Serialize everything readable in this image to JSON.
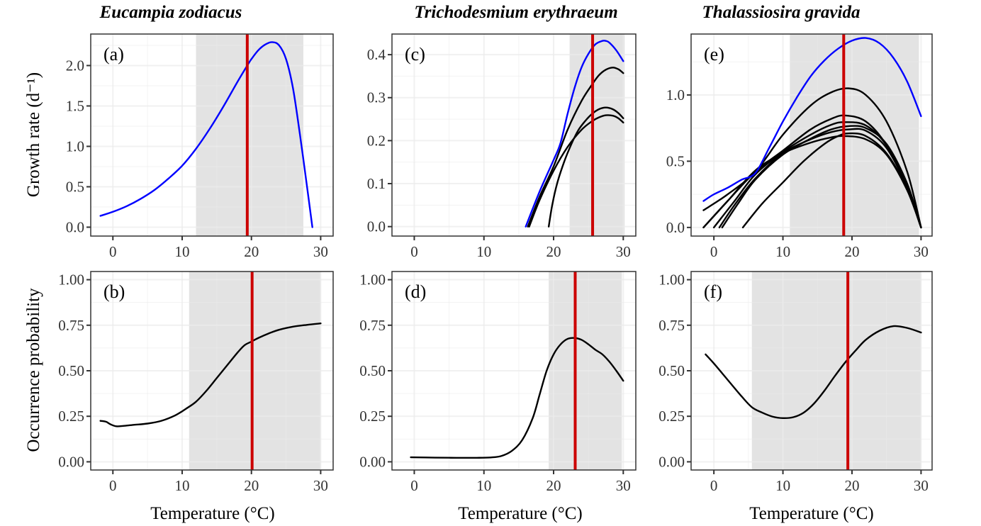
{
  "figure": {
    "columns": [
      {
        "species": "Eucampia zodiacus"
      },
      {
        "species": "Trichodesmium erythraeum"
      },
      {
        "species": "Thalassiosira gravida"
      }
    ],
    "row_ylabels": [
      "Growth rate (d⁻¹)",
      "Occurrence probability"
    ],
    "xlabel": "Temperature (°C)",
    "colors": {
      "optimum_curve": "#0000ff",
      "strain_curve": "#000000",
      "occurrence_curve": "#000000",
      "mean_temperature_line": "#cc0000",
      "shaded_range": "#e3e3e3",
      "grid": "#ebebeb",
      "panel_border": "#333333"
    }
  },
  "chart_data": [
    {
      "panel": "(a)",
      "type": "line",
      "species": "Eucampia zodiacus",
      "xlabel": "",
      "ylabel": "Growth rate (d⁻¹)",
      "xlim": [
        -3.2,
        31.8
      ],
      "ylim": [
        -0.11,
        2.39
      ],
      "xticks": [
        0,
        10,
        20,
        30
      ],
      "xtick_labels": [
        "0",
        "10",
        "20",
        "30"
      ],
      "yticks": [
        0,
        0.5,
        1.0,
        1.5,
        2.0
      ],
      "ytick_labels": [
        "0.0",
        "0.5",
        "1.0",
        "1.5",
        "2.0"
      ],
      "grid": true,
      "shaded_range": [
        12,
        27.5
      ],
      "vline": 19.4,
      "series": [
        {
          "name": "optimum",
          "color": "#0000ff",
          "x": [
            -1.8,
            0,
            2,
            4,
            6,
            8,
            10,
            12,
            14,
            16,
            18,
            19.4,
            20,
            21,
            22,
            23,
            24,
            25,
            26,
            27,
            28,
            28.8
          ],
          "y": [
            0.14,
            0.19,
            0.26,
            0.35,
            0.46,
            0.6,
            0.76,
            0.97,
            1.22,
            1.5,
            1.8,
            2.0,
            2.08,
            2.19,
            2.26,
            2.29,
            2.25,
            2.08,
            1.72,
            1.15,
            0.52,
            0.0
          ]
        }
      ]
    },
    {
      "panel": "(b)",
      "type": "line",
      "species": "Eucampia zodiacus",
      "xlabel": "Temperature (°C)",
      "ylabel": "Occurrence probability",
      "xlim": [
        -3.2,
        31.8
      ],
      "ylim": [
        -0.045,
        1.045
      ],
      "xticks": [
        0,
        10,
        20,
        30
      ],
      "xtick_labels": [
        "0",
        "10",
        "20",
        "30"
      ],
      "yticks": [
        0,
        0.25,
        0.5,
        0.75,
        1.0
      ],
      "ytick_labels": [
        "0.00",
        "0.25",
        "0.50",
        "0.75",
        "1.00"
      ],
      "grid": true,
      "shaded_range": [
        11,
        30
      ],
      "vline": 20.1,
      "series": [
        {
          "name": "occurrence",
          "color": "#000000",
          "x": [
            -1.8,
            -1,
            -0.3,
            0.5,
            1.5,
            3,
            5,
            7,
            9,
            10.5,
            12,
            13.5,
            15,
            16.5,
            18,
            19,
            20,
            21,
            22.5,
            24,
            26,
            28,
            30
          ],
          "y": [
            0.225,
            0.22,
            0.205,
            0.195,
            0.197,
            0.203,
            0.21,
            0.225,
            0.255,
            0.29,
            0.33,
            0.39,
            0.46,
            0.53,
            0.6,
            0.64,
            0.66,
            0.68,
            0.705,
            0.725,
            0.742,
            0.752,
            0.76
          ]
        }
      ]
    },
    {
      "panel": "(c)",
      "type": "line",
      "species": "Trichodesmium erythraeum",
      "xlabel": "",
      "ylabel": "",
      "xlim": [
        -3.2,
        31.8
      ],
      "ylim": [
        -0.022,
        0.448
      ],
      "xticks": [
        0,
        10,
        20,
        30
      ],
      "xtick_labels": [
        "0",
        "10",
        "20",
        "30"
      ],
      "yticks": [
        0,
        0.1,
        0.2,
        0.3,
        0.4
      ],
      "ytick_labels": [
        "0.0",
        "0.1",
        "0.2",
        "0.3",
        "0.4"
      ],
      "grid": true,
      "shaded_range": [
        22.3,
        30.2
      ],
      "vline": 25.6,
      "series": [
        {
          "name": "optimum",
          "color": "#0000ff",
          "x": [
            16,
            18,
            20,
            21,
            22,
            23,
            24,
            25,
            26,
            27,
            27.5,
            28,
            29,
            30
          ],
          "y": [
            0.0,
            0.082,
            0.155,
            0.195,
            0.262,
            0.322,
            0.37,
            0.402,
            0.424,
            0.432,
            0.432,
            0.428,
            0.41,
            0.385
          ]
        },
        {
          "name": "strain-1",
          "color": "#000000",
          "x": [
            16.3,
            18,
            20,
            22,
            24,
            25.5,
            26.5,
            27.5,
            28.5,
            29.3,
            30
          ],
          "y": [
            0.0,
            0.07,
            0.14,
            0.225,
            0.292,
            0.33,
            0.352,
            0.365,
            0.37,
            0.366,
            0.357
          ]
        },
        {
          "name": "strain-2",
          "color": "#000000",
          "x": [
            19.3,
            19.8,
            20.5,
            21.5,
            22.5,
            23.5,
            24.5,
            25.5,
            26.5,
            27.5,
            28.5,
            29.3,
            30
          ],
          "y": [
            0.0,
            0.05,
            0.1,
            0.15,
            0.19,
            0.223,
            0.245,
            0.262,
            0.273,
            0.277,
            0.273,
            0.264,
            0.252
          ]
        },
        {
          "name": "strain-3",
          "color": "#000000",
          "x": [
            16.5,
            18,
            20,
            22,
            24,
            25.5,
            26.5,
            27.5,
            28.5,
            29.3,
            30
          ],
          "y": [
            0.0,
            0.062,
            0.13,
            0.185,
            0.225,
            0.245,
            0.254,
            0.259,
            0.258,
            0.252,
            0.242
          ]
        }
      ]
    },
    {
      "panel": "(d)",
      "type": "line",
      "species": "Trichodesmium erythraeum",
      "xlabel": "Temperature (°C)",
      "ylabel": "",
      "xlim": [
        -3.2,
        31.8
      ],
      "ylim": [
        -0.045,
        1.045
      ],
      "xticks": [
        0,
        10,
        20,
        30
      ],
      "xtick_labels": [
        "0",
        "10",
        "20",
        "30"
      ],
      "yticks": [
        0,
        0.25,
        0.5,
        0.75,
        1.0
      ],
      "ytick_labels": [
        "0.00",
        "0.25",
        "0.50",
        "0.75",
        "1.00"
      ],
      "grid": true,
      "shaded_range": [
        19.3,
        29.8
      ],
      "vline": 23.1,
      "series": [
        {
          "name": "occurrence",
          "color": "#000000",
          "x": [
            -0.5,
            3,
            6,
            9,
            11,
            12.5,
            14,
            15.5,
            17,
            18,
            19,
            20,
            21,
            22,
            23,
            24,
            25,
            26,
            27,
            28,
            29,
            30
          ],
          "y": [
            0.025,
            0.023,
            0.022,
            0.022,
            0.024,
            0.032,
            0.06,
            0.12,
            0.24,
            0.37,
            0.5,
            0.59,
            0.645,
            0.675,
            0.68,
            0.67,
            0.645,
            0.615,
            0.59,
            0.55,
            0.5,
            0.445
          ]
        }
      ]
    },
    {
      "panel": "(e)",
      "type": "line",
      "species": "Thalassiosira gravida",
      "xlabel": "",
      "ylabel": "",
      "xlim": [
        -3.3,
        31.6
      ],
      "ylim": [
        -0.065,
        1.46
      ],
      "xticks": [
        0,
        10,
        20,
        30
      ],
      "xtick_labels": [
        "0",
        "10",
        "20",
        "30"
      ],
      "yticks": [
        0,
        0.5,
        1.0
      ],
      "ytick_labels": [
        "0.0",
        "0.5",
        "1.0"
      ],
      "grid": true,
      "shaded_range": [
        11,
        29.7
      ],
      "vline": 18.8,
      "series": [
        {
          "name": "optimum",
          "color": "#0000ff",
          "x": [
            -1.5,
            0,
            2,
            4,
            6,
            8,
            10,
            12,
            14,
            16,
            18,
            20,
            22,
            24,
            26,
            28,
            30
          ],
          "y": [
            0.2,
            0.25,
            0.3,
            0.36,
            0.41,
            0.6,
            0.8,
            0.98,
            1.14,
            1.26,
            1.35,
            1.41,
            1.43,
            1.39,
            1.28,
            1.1,
            0.84
          ]
        },
        {
          "name": "strain-1",
          "color": "#000000",
          "x": [
            -1.5,
            2,
            6,
            10,
            14,
            17,
            19.5,
            22,
            25,
            28,
            30
          ],
          "y": [
            0.13,
            0.25,
            0.42,
            0.7,
            0.92,
            1.02,
            1.05,
            1.0,
            0.8,
            0.42,
            0.0
          ]
        },
        {
          "name": "strain-2",
          "color": "#000000",
          "x": [
            -1.5,
            2,
            6,
            10,
            14,
            17,
            19,
            22,
            25,
            28,
            30
          ],
          "y": [
            0.0,
            0.2,
            0.42,
            0.58,
            0.74,
            0.82,
            0.845,
            0.8,
            0.62,
            0.3,
            0.0
          ]
        },
        {
          "name": "strain-3",
          "color": "#000000",
          "x": [
            0,
            3,
            6,
            10,
            14,
            17,
            19,
            22,
            25,
            28,
            30
          ],
          "y": [
            0.0,
            0.2,
            0.4,
            0.57,
            0.7,
            0.775,
            0.795,
            0.77,
            0.62,
            0.32,
            0.0
          ]
        },
        {
          "name": "strain-4",
          "color": "#000000",
          "x": [
            1.2,
            3.5,
            6,
            10,
            14,
            17,
            19.5,
            22,
            25,
            28,
            30
          ],
          "y": [
            0.0,
            0.18,
            0.36,
            0.55,
            0.67,
            0.74,
            0.765,
            0.75,
            0.63,
            0.33,
            0.0
          ]
        },
        {
          "name": "strain-5",
          "color": "#000000",
          "x": [
            0.8,
            3,
            6,
            10,
            14,
            17,
            19.5,
            22,
            25,
            28,
            30
          ],
          "y": [
            0.0,
            0.17,
            0.37,
            0.56,
            0.665,
            0.72,
            0.74,
            0.73,
            0.6,
            0.3,
            0.0
          ]
        },
        {
          "name": "strain-6",
          "color": "#000000",
          "x": [
            -1.5,
            2,
            6,
            10,
            14,
            17,
            19,
            22,
            25,
            28,
            30
          ],
          "y": [
            0.0,
            0.2,
            0.43,
            0.56,
            0.64,
            0.68,
            0.69,
            0.665,
            0.55,
            0.28,
            0.0
          ]
        },
        {
          "name": "strain-7",
          "color": "#000000",
          "x": [
            4.2,
            7,
            10,
            13,
            16,
            18,
            19.5,
            22,
            25,
            28,
            30
          ],
          "y": [
            0.0,
            0.18,
            0.34,
            0.5,
            0.63,
            0.69,
            0.71,
            0.69,
            0.56,
            0.29,
            0.0
          ]
        }
      ]
    },
    {
      "panel": "(f)",
      "type": "line",
      "species": "Thalassiosira gravida",
      "xlabel": "Temperature (°C)",
      "ylabel": "",
      "xlim": [
        -3.3,
        31.6
      ],
      "ylim": [
        -0.045,
        1.045
      ],
      "xticks": [
        0,
        10,
        20,
        30
      ],
      "xtick_labels": [
        "0",
        "10",
        "20",
        "30"
      ],
      "yticks": [
        0,
        0.25,
        0.5,
        0.75,
        1.0
      ],
      "ytick_labels": [
        "0.00",
        "0.25",
        "0.50",
        "0.75",
        "1.00"
      ],
      "grid": true,
      "shaded_range": [
        5.5,
        30
      ],
      "vline": 19.4,
      "series": [
        {
          "name": "occurrence",
          "color": "#000000",
          "x": [
            -1.2,
            0,
            2,
            4,
            5.5,
            7,
            8.5,
            10,
            11.5,
            13,
            14.5,
            16,
            17.5,
            19,
            20.5,
            22,
            24,
            26,
            28,
            30
          ],
          "y": [
            0.59,
            0.54,
            0.45,
            0.36,
            0.3,
            0.27,
            0.248,
            0.24,
            0.245,
            0.27,
            0.32,
            0.39,
            0.47,
            0.545,
            0.61,
            0.67,
            0.72,
            0.745,
            0.735,
            0.71
          ]
        }
      ]
    }
  ]
}
